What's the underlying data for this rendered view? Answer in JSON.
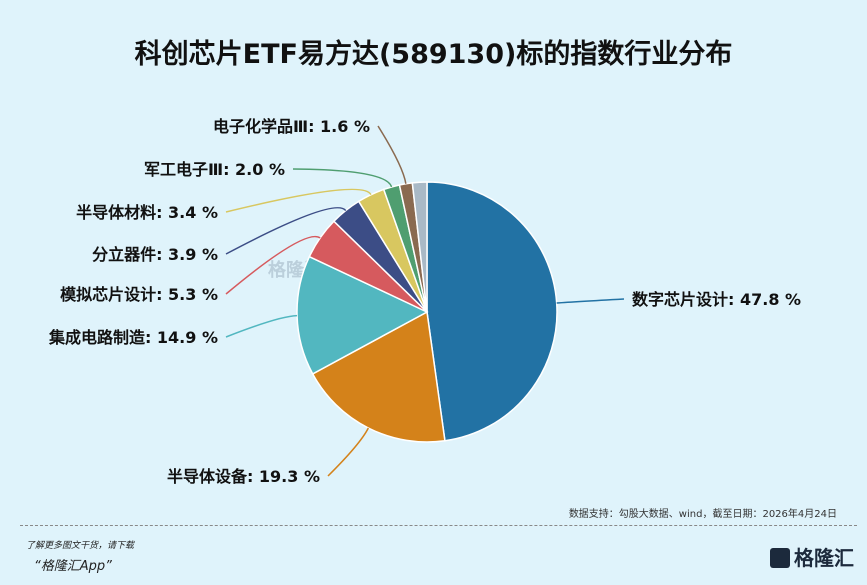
{
  "chart_data": {
    "type": "pie",
    "title": "科创芯片ETF易方达(589130)标的指数行业分布",
    "start": "top",
    "direction": "clockwise",
    "slices": [
      {
        "label": "数字芯片设计",
        "value": 47.8,
        "display": "数字芯片设计: 47.8 %",
        "color": "#2272a4"
      },
      {
        "label": "半导体设备",
        "value": 19.3,
        "display": "半导体设备: 19.3 %",
        "color": "#d4821a"
      },
      {
        "label": "集成电路制造",
        "value": 14.9,
        "display": "集成电路制造: 14.9 %",
        "color": "#52b7c0"
      },
      {
        "label": "模拟芯片设计",
        "value": 5.3,
        "display": "模拟芯片设计: 5.3 %",
        "color": "#d65a5e"
      },
      {
        "label": "分立器件",
        "value": 3.9,
        "display": "分立器件: 3.9 %",
        "color": "#3c4d86"
      },
      {
        "label": "半导体材料",
        "value": 3.4,
        "display": "半导体材料: 3.4 %",
        "color": "#d8c760"
      },
      {
        "label": "军工电子Ⅲ",
        "value": 2.0,
        "display": "军工电子Ⅲ: 2.0 %",
        "color": "#4f9e70"
      },
      {
        "label": "电子化学品Ⅲ",
        "value": 1.6,
        "display": "电子化学品Ⅲ: 1.6 %",
        "color": "#8a6a50"
      },
      {
        "label": "",
        "value": 1.8,
        "display": "",
        "color": "#a9b9c6"
      }
    ]
  },
  "footer": {
    "source": "数据支持：勾股大数据、wind，截至日期：2026年4月24日",
    "promo_line1": "了解更多图文干货，请下载",
    "promo_line2": "“格隆汇App”",
    "logo": "格隆汇",
    "watermark": "格隆汇  勾股大数据"
  }
}
